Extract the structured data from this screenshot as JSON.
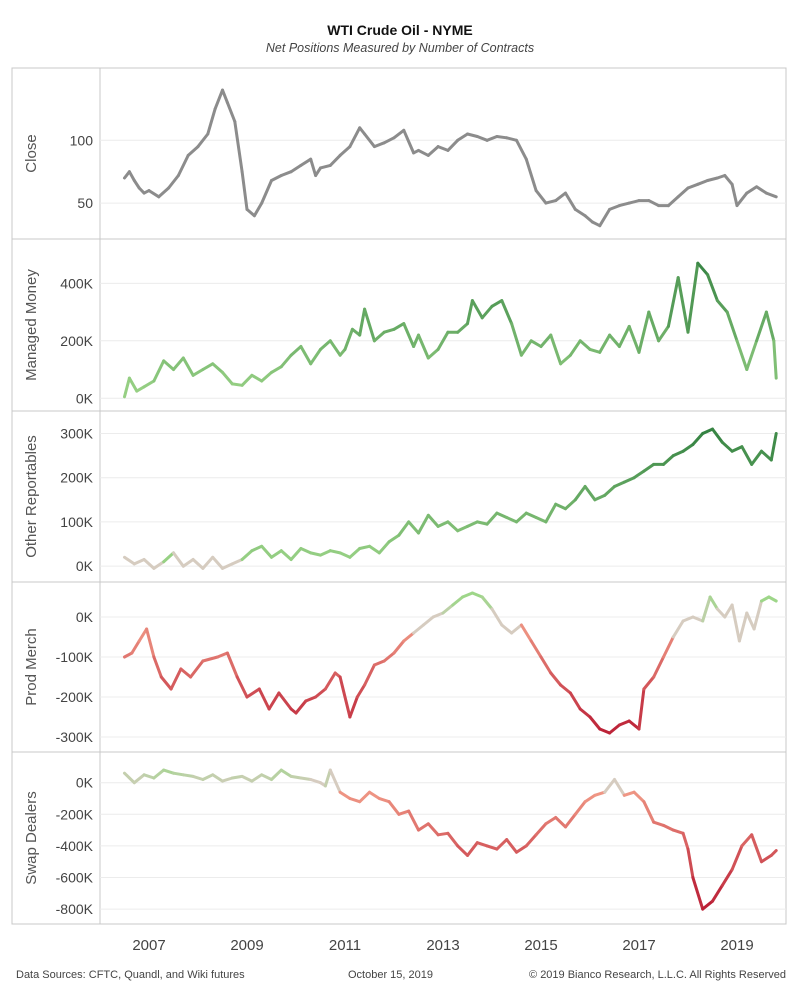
{
  "title": "WTI Crude Oil - NYME",
  "subtitle": "Net Positions Measured by Number of Contracts",
  "footer": {
    "sources": "Data Sources: CFTC, Quandl, and Wiki futures",
    "date": "October 15, 2019",
    "copyright": "© 2019 Bianco Research, L.L.C. All Rights Reserved"
  },
  "colors": {
    "gray": "#8c8c8c",
    "green_light": "#9ed689",
    "green_dark": "#2a7a3b",
    "red_light": "#f4a28c",
    "red_dark": "#b5122d",
    "neutral": "#d6ccc0",
    "grid": "#ececec",
    "border": "#c8c8c8"
  },
  "chart_data": {
    "type": "line",
    "x_ticks": [
      "2007",
      "2009",
      "2011",
      "2013",
      "2015",
      "2017",
      "2019"
    ],
    "xlim": [
      2006.0,
      2020.0
    ],
    "grid": true,
    "panels": [
      {
        "label": "Close",
        "color_mode": "gray",
        "ylim": [
          27,
          152
        ],
        "yticks": [
          50,
          100
        ],
        "ytick_labels": [
          "50",
          "100"
        ],
        "x": [
          2006.5,
          2006.6,
          2006.7,
          2006.8,
          2006.9,
          2007.0,
          2007.2,
          2007.4,
          2007.6,
          2007.8,
          2008.0,
          2008.2,
          2008.35,
          2008.5,
          2008.6,
          2008.75,
          2008.9,
          2009.0,
          2009.15,
          2009.3,
          2009.5,
          2009.7,
          2009.9,
          2010.1,
          2010.3,
          2010.4,
          2010.5,
          2010.7,
          2010.9,
          2011.1,
          2011.3,
          2011.4,
          2011.6,
          2011.8,
          2012.0,
          2012.2,
          2012.4,
          2012.5,
          2012.7,
          2012.9,
          2013.1,
          2013.3,
          2013.5,
          2013.7,
          2013.9,
          2014.1,
          2014.3,
          2014.5,
          2014.7,
          2014.9,
          2015.1,
          2015.3,
          2015.5,
          2015.7,
          2015.9,
          2016.05,
          2016.2,
          2016.4,
          2016.6,
          2016.8,
          2017.0,
          2017.2,
          2017.4,
          2017.6,
          2017.8,
          2018.0,
          2018.2,
          2018.4,
          2018.6,
          2018.75,
          2018.9,
          2019.0,
          2019.2,
          2019.4,
          2019.6,
          2019.8
        ],
        "y": [
          70,
          75,
          68,
          62,
          58,
          60,
          55,
          62,
          72,
          88,
          95,
          105,
          125,
          140,
          130,
          115,
          75,
          45,
          40,
          50,
          68,
          72,
          75,
          80,
          85,
          72,
          78,
          80,
          88,
          95,
          110,
          105,
          95,
          98,
          102,
          108,
          90,
          92,
          88,
          95,
          92,
          100,
          105,
          103,
          100,
          103,
          102,
          100,
          85,
          60,
          50,
          52,
          58,
          45,
          40,
          35,
          32,
          45,
          48,
          50,
          52,
          52,
          48,
          48,
          55,
          62,
          65,
          68,
          70,
          72,
          65,
          48,
          58,
          63,
          58,
          55
        ]
      },
      {
        "label": "Managed Money",
        "color_mode": "green",
        "ylim": [
          -20000,
          530000
        ],
        "yticks": [
          0,
          200000,
          400000
        ],
        "ytick_labels": [
          "0K",
          "200K",
          "400K"
        ],
        "x": [
          2006.5,
          2006.6,
          2006.75,
          2006.9,
          2007.1,
          2007.3,
          2007.5,
          2007.7,
          2007.9,
          2008.1,
          2008.3,
          2008.5,
          2008.7,
          2008.9,
          2009.1,
          2009.3,
          2009.5,
          2009.7,
          2009.9,
          2010.1,
          2010.3,
          2010.5,
          2010.7,
          2010.9,
          2011.0,
          2011.15,
          2011.3,
          2011.4,
          2011.6,
          2011.8,
          2012.0,
          2012.2,
          2012.4,
          2012.5,
          2012.7,
          2012.9,
          2013.1,
          2013.3,
          2013.5,
          2013.6,
          2013.8,
          2014.0,
          2014.2,
          2014.4,
          2014.6,
          2014.8,
          2015.0,
          2015.2,
          2015.4,
          2015.6,
          2015.8,
          2016.0,
          2016.2,
          2016.4,
          2016.6,
          2016.8,
          2017.0,
          2017.2,
          2017.4,
          2017.6,
          2017.8,
          2018.0,
          2018.2,
          2018.4,
          2018.6,
          2018.8,
          2019.0,
          2019.2,
          2019.4,
          2019.6,
          2019.75,
          2019.8
        ],
        "y": [
          5000,
          70000,
          25000,
          40000,
          60000,
          130000,
          100000,
          140000,
          80000,
          100000,
          120000,
          90000,
          50000,
          45000,
          80000,
          60000,
          90000,
          110000,
          150000,
          180000,
          120000,
          170000,
          200000,
          150000,
          170000,
          240000,
          220000,
          310000,
          200000,
          230000,
          240000,
          260000,
          180000,
          220000,
          140000,
          170000,
          230000,
          230000,
          260000,
          340000,
          280000,
          320000,
          340000,
          260000,
          150000,
          200000,
          180000,
          220000,
          120000,
          150000,
          200000,
          170000,
          160000,
          220000,
          180000,
          250000,
          160000,
          300000,
          200000,
          250000,
          420000,
          230000,
          470000,
          430000,
          340000,
          300000,
          200000,
          100000,
          200000,
          300000,
          200000,
          70000
        ]
      },
      {
        "label": "Other Reportables",
        "color_mode": "green",
        "ylim": [
          -20000,
          335000
        ],
        "yticks": [
          0,
          100000,
          200000,
          300000
        ],
        "ytick_labels": [
          "0K",
          "100K",
          "200K",
          "300K"
        ],
        "x": [
          2006.5,
          2006.7,
          2006.9,
          2007.1,
          2007.3,
          2007.5,
          2007.7,
          2007.9,
          2008.1,
          2008.3,
          2008.5,
          2008.7,
          2008.9,
          2009.1,
          2009.3,
          2009.5,
          2009.7,
          2009.9,
          2010.1,
          2010.3,
          2010.5,
          2010.7,
          2010.9,
          2011.1,
          2011.3,
          2011.5,
          2011.7,
          2011.9,
          2012.1,
          2012.3,
          2012.5,
          2012.7,
          2012.9,
          2013.1,
          2013.3,
          2013.5,
          2013.7,
          2013.9,
          2014.1,
          2014.3,
          2014.5,
          2014.7,
          2014.9,
          2015.1,
          2015.3,
          2015.5,
          2015.7,
          2015.9,
          2016.1,
          2016.3,
          2016.5,
          2016.7,
          2016.9,
          2017.1,
          2017.3,
          2017.5,
          2017.7,
          2017.9,
          2018.1,
          2018.3,
          2018.5,
          2018.7,
          2018.9,
          2019.1,
          2019.3,
          2019.5,
          2019.7,
          2019.8
        ],
        "y": [
          20000,
          5000,
          15000,
          -5000,
          10000,
          30000,
          0,
          15000,
          -5000,
          20000,
          -5000,
          5000,
          15000,
          35000,
          45000,
          20000,
          35000,
          15000,
          40000,
          30000,
          25000,
          35000,
          30000,
          20000,
          40000,
          45000,
          30000,
          55000,
          70000,
          100000,
          75000,
          115000,
          90000,
          100000,
          80000,
          90000,
          100000,
          95000,
          120000,
          110000,
          100000,
          120000,
          110000,
          100000,
          140000,
          130000,
          150000,
          180000,
          150000,
          160000,
          180000,
          190000,
          200000,
          215000,
          230000,
          230000,
          250000,
          260000,
          275000,
          300000,
          310000,
          280000,
          260000,
          270000,
          230000,
          260000,
          240000,
          300000
        ]
      },
      {
        "label": "Prod Merch",
        "color_mode": "diverging",
        "ylim": [
          -320000,
          70000
        ],
        "yticks": [
          0,
          -100000,
          -200000,
          -300000
        ],
        "ytick_labels": [
          "0K",
          "-100K",
          "-200K",
          "-300K"
        ],
        "x": [
          2006.5,
          2006.65,
          2006.8,
          2006.95,
          2007.1,
          2007.25,
          2007.45,
          2007.65,
          2007.85,
          2008.1,
          2008.4,
          2008.6,
          2008.8,
          2009.0,
          2009.25,
          2009.45,
          2009.65,
          2009.9,
          2010.0,
          2010.2,
          2010.4,
          2010.6,
          2010.8,
          2010.9,
          2011.1,
          2011.25,
          2011.4,
          2011.6,
          2011.8,
          2012.0,
          2012.2,
          2012.4,
          2012.6,
          2012.8,
          2013.0,
          2013.2,
          2013.4,
          2013.6,
          2013.8,
          2014.0,
          2014.2,
          2014.4,
          2014.6,
          2014.8,
          2015.0,
          2015.2,
          2015.4,
          2015.6,
          2015.8,
          2016.0,
          2016.2,
          2016.4,
          2016.6,
          2016.8,
          2017.0,
          2017.1,
          2017.3,
          2017.5,
          2017.7,
          2017.9,
          2018.1,
          2018.3,
          2018.45,
          2018.6,
          2018.75,
          2018.9,
          2019.05,
          2019.2,
          2019.35,
          2019.5,
          2019.65,
          2019.8
        ],
        "y": [
          -100000,
          -90000,
          -60000,
          -30000,
          -100000,
          -150000,
          -180000,
          -130000,
          -150000,
          -110000,
          -100000,
          -90000,
          -150000,
          -200000,
          -180000,
          -230000,
          -190000,
          -230000,
          -240000,
          -210000,
          -200000,
          -180000,
          -140000,
          -150000,
          -250000,
          -200000,
          -170000,
          -120000,
          -110000,
          -90000,
          -60000,
          -40000,
          -20000,
          0,
          10000,
          30000,
          50000,
          60000,
          50000,
          20000,
          -20000,
          -40000,
          -20000,
          -60000,
          -100000,
          -140000,
          -170000,
          -190000,
          -230000,
          -250000,
          -280000,
          -290000,
          -270000,
          -260000,
          -280000,
          -180000,
          -150000,
          -100000,
          -50000,
          -10000,
          0,
          -10000,
          50000,
          20000,
          0,
          30000,
          -60000,
          10000,
          -30000,
          40000,
          50000,
          40000
        ]
      },
      {
        "label": "Swap Dealers",
        "color_mode": "diverging",
        "ylim": [
          -850000,
          150000
        ],
        "yticks": [
          0,
          -200000,
          -400000,
          -600000,
          -800000
        ],
        "ytick_labels": [
          "0K",
          "-200K",
          "-400K",
          "-600K",
          "-800K"
        ],
        "x": [
          2006.5,
          2006.7,
          2006.9,
          2007.1,
          2007.3,
          2007.5,
          2007.7,
          2007.9,
          2008.1,
          2008.3,
          2008.5,
          2008.7,
          2008.9,
          2009.1,
          2009.3,
          2009.5,
          2009.7,
          2009.9,
          2010.1,
          2010.3,
          2010.5,
          2010.6,
          2010.7,
          2010.9,
          2011.1,
          2011.3,
          2011.5,
          2011.7,
          2011.9,
          2012.1,
          2012.3,
          2012.5,
          2012.7,
          2012.9,
          2013.1,
          2013.3,
          2013.5,
          2013.7,
          2013.9,
          2014.1,
          2014.3,
          2014.5,
          2014.7,
          2014.9,
          2015.1,
          2015.3,
          2015.5,
          2015.7,
          2015.9,
          2016.1,
          2016.3,
          2016.5,
          2016.7,
          2016.9,
          2017.1,
          2017.3,
          2017.5,
          2017.7,
          2017.9,
          2018.0,
          2018.1,
          2018.3,
          2018.5,
          2018.7,
          2018.9,
          2019.1,
          2019.3,
          2019.5,
          2019.7,
          2019.8
        ],
        "y": [
          60000,
          0,
          50000,
          30000,
          80000,
          60000,
          50000,
          40000,
          20000,
          50000,
          10000,
          30000,
          40000,
          10000,
          50000,
          20000,
          80000,
          40000,
          30000,
          20000,
          0,
          -20000,
          80000,
          -60000,
          -100000,
          -120000,
          -60000,
          -100000,
          -120000,
          -200000,
          -180000,
          -300000,
          -260000,
          -330000,
          -320000,
          -400000,
          -460000,
          -380000,
          -400000,
          -420000,
          -360000,
          -440000,
          -400000,
          -330000,
          -260000,
          -220000,
          -280000,
          -200000,
          -120000,
          -80000,
          -60000,
          20000,
          -80000,
          -60000,
          -120000,
          -250000,
          -270000,
          -300000,
          -320000,
          -420000,
          -600000,
          -800000,
          -750000,
          -650000,
          -550000,
          -400000,
          -330000,
          -500000,
          -460000,
          -430000
        ]
      }
    ]
  }
}
